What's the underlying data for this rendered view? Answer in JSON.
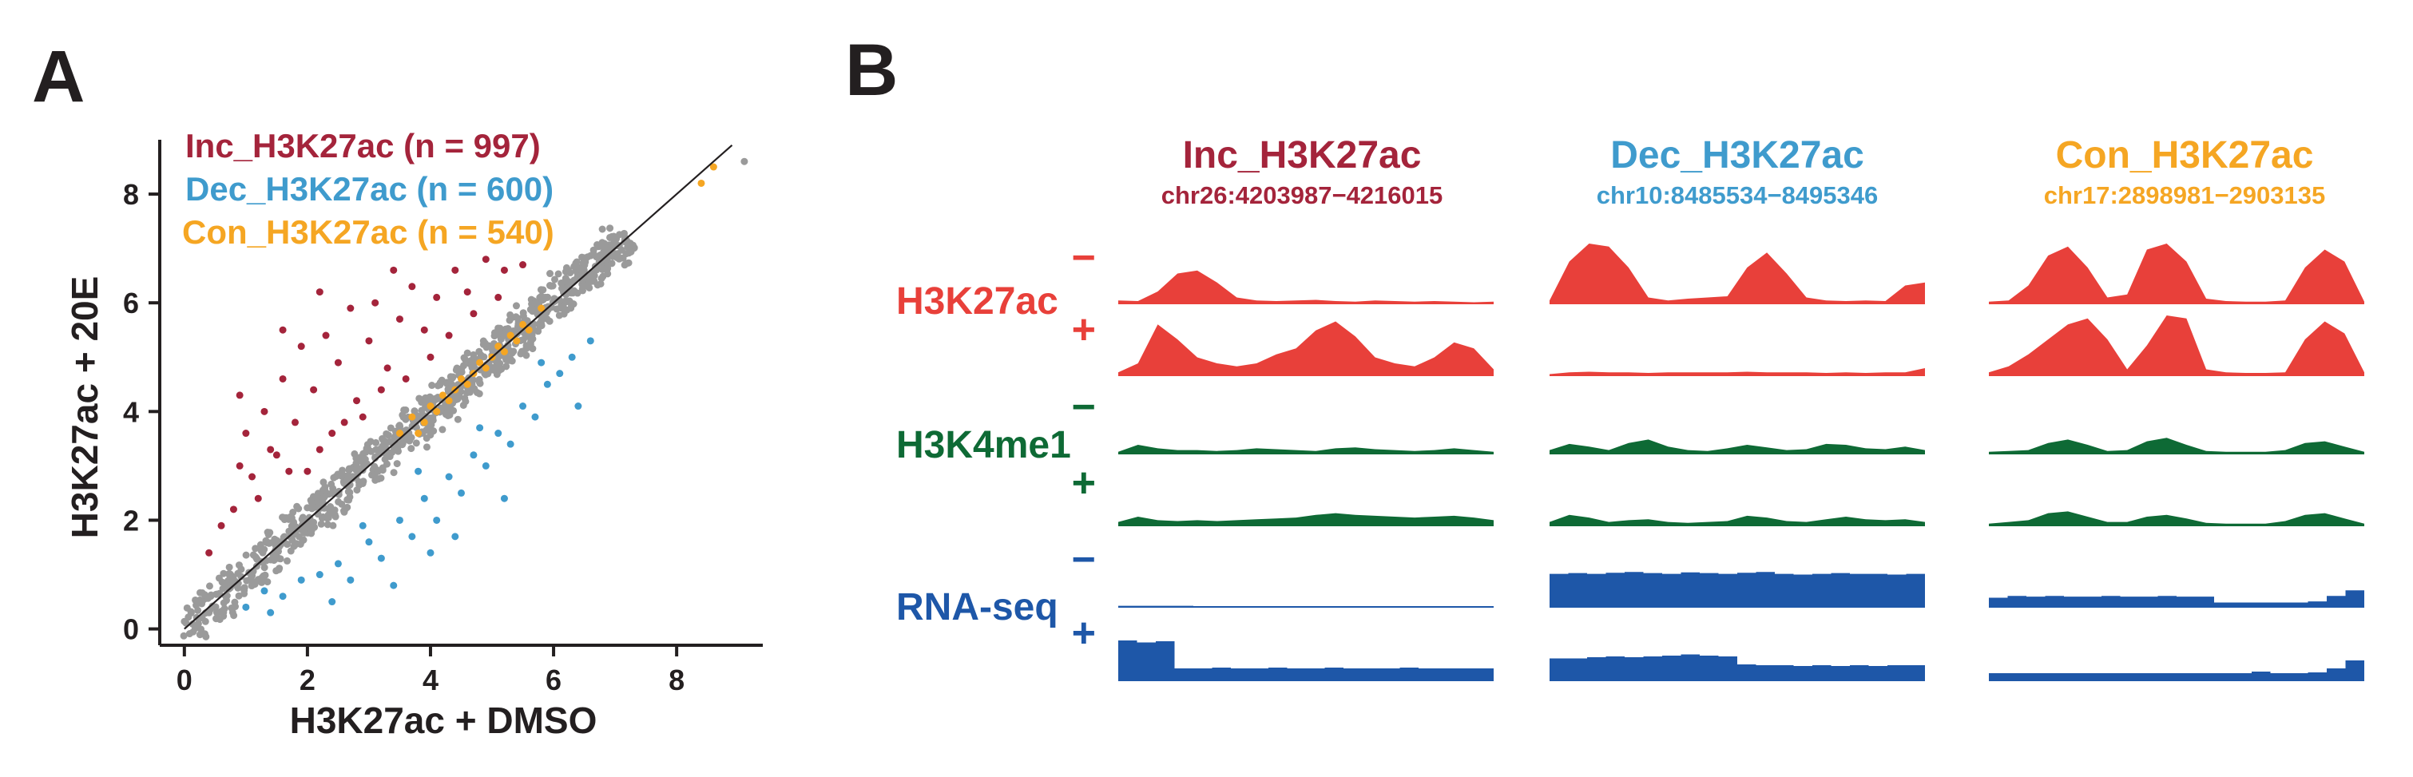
{
  "panels": {
    "a_label": "A",
    "b_label": "B"
  },
  "colors": {
    "inc": "#a4243b",
    "dec": "#3f9bcd",
    "con": "#f5a623",
    "background_points": "#9a9a9a",
    "h3k27ac": "#e8403a",
    "h3k4me1": "#0e6a35",
    "rnaseq": "#1e57a8",
    "axis": "#231f20"
  },
  "chart_data": [
    {
      "type": "scatter",
      "panel": "A",
      "xlabel": "H3K27ac + DMSO",
      "ylabel": "H3K27ac + 20E",
      "xlim": [
        -0.4,
        9.4
      ],
      "ylim": [
        -0.3,
        9.0
      ],
      "xticks": [
        0,
        2,
        4,
        6,
        8
      ],
      "yticks": [
        0,
        2,
        4,
        6,
        8
      ],
      "diagonal": "y = x",
      "legend_position": "top-left",
      "series": [
        {
          "name": "Inc_H3K27ac (n = 997)",
          "key": "inc",
          "n": 997,
          "points": [
            [
              0.4,
              1.4
            ],
            [
              0.8,
              2.2
            ],
            [
              0.9,
              3.0
            ],
            [
              1.0,
              3.6
            ],
            [
              1.2,
              2.4
            ],
            [
              1.3,
              4.0
            ],
            [
              1.5,
              3.2
            ],
            [
              1.6,
              4.6
            ],
            [
              1.8,
              3.8
            ],
            [
              1.9,
              5.2
            ],
            [
              2.0,
              2.9
            ],
            [
              2.1,
              4.4
            ],
            [
              2.3,
              5.4
            ],
            [
              2.4,
              3.6
            ],
            [
              2.5,
              4.9
            ],
            [
              2.7,
              5.9
            ],
            [
              2.8,
              4.2
            ],
            [
              3.0,
              5.3
            ],
            [
              3.1,
              6.0
            ],
            [
              3.3,
              4.8
            ],
            [
              3.5,
              5.7
            ],
            [
              3.7,
              6.3
            ],
            [
              3.9,
              5.5
            ],
            [
              4.1,
              6.1
            ],
            [
              4.4,
              6.6
            ],
            [
              4.6,
              6.2
            ],
            [
              4.9,
              6.8
            ],
            [
              5.2,
              6.6
            ],
            [
              0.6,
              1.9
            ],
            [
              1.1,
              2.8
            ],
            [
              1.4,
              3.3
            ],
            [
              1.7,
              2.9
            ],
            [
              2.2,
              3.3
            ],
            [
              2.6,
              3.8
            ],
            [
              2.9,
              3.9
            ],
            [
              3.2,
              4.4
            ],
            [
              3.6,
              4.6
            ],
            [
              4.0,
              5.0
            ],
            [
              4.3,
              5.4
            ],
            [
              4.7,
              5.8
            ],
            [
              5.1,
              6.1
            ],
            [
              5.5,
              6.7
            ],
            [
              1.6,
              5.5
            ],
            [
              2.2,
              6.2
            ],
            [
              0.9,
              4.3
            ],
            [
              3.4,
              6.6
            ]
          ]
        },
        {
          "name": "Dec_H3K27ac (n = 600)",
          "key": "dec",
          "n": 600,
          "points": [
            [
              1.0,
              0.4
            ],
            [
              1.3,
              0.7
            ],
            [
              1.6,
              0.6
            ],
            [
              1.9,
              0.9
            ],
            [
              2.2,
              1.0
            ],
            [
              2.5,
              1.2
            ],
            [
              2.7,
              0.9
            ],
            [
              3.0,
              1.6
            ],
            [
              3.2,
              1.3
            ],
            [
              3.5,
              2.0
            ],
            [
              3.7,
              1.7
            ],
            [
              3.9,
              2.4
            ],
            [
              4.1,
              2.0
            ],
            [
              4.3,
              2.8
            ],
            [
              4.5,
              2.5
            ],
            [
              4.7,
              3.2
            ],
            [
              4.9,
              3.0
            ],
            [
              5.1,
              3.6
            ],
            [
              5.3,
              3.4
            ],
            [
              5.5,
              4.1
            ],
            [
              5.7,
              3.9
            ],
            [
              5.9,
              4.5
            ],
            [
              6.1,
              4.7
            ],
            [
              6.3,
              5.0
            ],
            [
              1.4,
              0.3
            ],
            [
              2.4,
              0.5
            ],
            [
              3.4,
              0.8
            ],
            [
              4.4,
              1.7
            ],
            [
              5.2,
              2.4
            ],
            [
              6.4,
              4.1
            ],
            [
              2.9,
              1.9
            ],
            [
              3.8,
              2.9
            ],
            [
              4.8,
              3.7
            ],
            [
              5.8,
              4.9
            ],
            [
              6.6,
              5.3
            ],
            [
              4.0,
              1.4
            ]
          ]
        },
        {
          "name": "Con_H3K27ac (n = 540)",
          "key": "con",
          "n": 540,
          "points": [
            [
              3.5,
              3.6
            ],
            [
              3.7,
              3.9
            ],
            [
              3.9,
              3.8
            ],
            [
              4.0,
              4.1
            ],
            [
              4.2,
              4.3
            ],
            [
              4.3,
              4.2
            ],
            [
              4.5,
              4.6
            ],
            [
              4.6,
              4.5
            ],
            [
              4.8,
              4.9
            ],
            [
              4.9,
              4.8
            ],
            [
              5.1,
              5.2
            ],
            [
              5.2,
              5.1
            ],
            [
              5.3,
              5.4
            ],
            [
              5.5,
              5.6
            ],
            [
              5.6,
              5.5
            ],
            [
              5.8,
              5.9
            ],
            [
              3.8,
              3.6
            ],
            [
              4.1,
              4.0
            ],
            [
              4.4,
              4.4
            ],
            [
              4.7,
              4.7
            ],
            [
              5.0,
              5.0
            ],
            [
              5.4,
              5.3
            ],
            [
              8.4,
              8.2
            ],
            [
              8.6,
              8.5
            ]
          ]
        }
      ],
      "legend": [
        {
          "key": "inc",
          "label": "Inc_H3K27ac (n = 997)"
        },
        {
          "key": "dec",
          "label": "Dec_H3K27ac (n = 600)"
        },
        {
          "key": "con",
          "label": "Con_H3K27ac (n = 540)"
        }
      ]
    },
    {
      "type": "area",
      "panel": "B",
      "description_of_type": "genome browser tracks",
      "loci": [
        {
          "key": "inc",
          "title": "Inc_H3K27ac",
          "coords": "chr26:4203987−4216015"
        },
        {
          "key": "dec",
          "title": "Dec_H3K27ac",
          "coords": "chr10:8485534−8495346"
        },
        {
          "key": "con",
          "title": "Con_H3K27ac",
          "coords": "chr17:2898981−2903135"
        }
      ],
      "marks": [
        {
          "key": "h3k27ac",
          "label": "H3K27ac"
        },
        {
          "key": "h3k4me1",
          "label": "H3K4me1"
        },
        {
          "key": "rnaseq",
          "label": "RNA-seq"
        }
      ],
      "conditions": [
        {
          "key": "minus",
          "label": "−"
        },
        {
          "key": "plus",
          "label": "+"
        }
      ],
      "tracks": {
        "h3k27ac": {
          "minus": [
            [
              0.05,
              0.04,
              0.2,
              0.5,
              0.55,
              0.35,
              0.1,
              0.05,
              0.04,
              0.05,
              0.06,
              0.04,
              0.03,
              0.05,
              0.04,
              0.03,
              0.04,
              0.03,
              0.02,
              0.03
            ],
            [
              0.05,
              0.7,
              1.0,
              0.95,
              0.6,
              0.1,
              0.05,
              0.08,
              0.1,
              0.12,
              0.6,
              0.85,
              0.5,
              0.1,
              0.05,
              0.04,
              0.05,
              0.04,
              0.3,
              0.35
            ],
            [
              0.03,
              0.05,
              0.3,
              0.8,
              0.95,
              0.6,
              0.1,
              0.15,
              0.9,
              1.0,
              0.7,
              0.08,
              0.04,
              0.03,
              0.03,
              0.05,
              0.6,
              0.9,
              0.7,
              0.03
            ]
          ],
          "plus": [
            [
              0.05,
              0.2,
              0.85,
              0.6,
              0.3,
              0.2,
              0.15,
              0.2,
              0.35,
              0.45,
              0.75,
              0.9,
              0.65,
              0.3,
              0.2,
              0.15,
              0.3,
              0.55,
              0.45,
              0.1
            ],
            [
              0.02,
              0.05,
              0.06,
              0.05,
              0.05,
              0.04,
              0.05,
              0.05,
              0.05,
              0.05,
              0.06,
              0.05,
              0.05,
              0.05,
              0.04,
              0.05,
              0.04,
              0.05,
              0.05,
              0.12
            ],
            [
              0.05,
              0.15,
              0.35,
              0.6,
              0.85,
              0.95,
              0.6,
              0.1,
              0.5,
              1.0,
              0.95,
              0.1,
              0.05,
              0.04,
              0.04,
              0.05,
              0.6,
              0.9,
              0.7,
              0.05
            ]
          ]
        },
        "h3k4me1": {
          "minus": [
            [
              0.1,
              0.5,
              0.3,
              0.2,
              0.2,
              0.15,
              0.2,
              0.3,
              0.25,
              0.2,
              0.15,
              0.3,
              0.35,
              0.25,
              0.2,
              0.15,
              0.2,
              0.3,
              0.2,
              0.1
            ],
            [
              0.2,
              0.55,
              0.4,
              0.2,
              0.6,
              0.8,
              0.4,
              0.2,
              0.15,
              0.3,
              0.5,
              0.35,
              0.2,
              0.25,
              0.55,
              0.5,
              0.3,
              0.25,
              0.4,
              0.2
            ],
            [
              0.1,
              0.15,
              0.2,
              0.6,
              0.8,
              0.5,
              0.15,
              0.2,
              0.7,
              0.9,
              0.5,
              0.15,
              0.1,
              0.1,
              0.1,
              0.2,
              0.6,
              0.7,
              0.4,
              0.1
            ]
          ],
          "plus": [
            [
              0.2,
              0.5,
              0.3,
              0.25,
              0.3,
              0.25,
              0.3,
              0.35,
              0.4,
              0.45,
              0.6,
              0.7,
              0.6,
              0.55,
              0.5,
              0.45,
              0.5,
              0.55,
              0.45,
              0.3
            ],
            [
              0.2,
              0.6,
              0.45,
              0.2,
              0.3,
              0.35,
              0.2,
              0.15,
              0.2,
              0.25,
              0.55,
              0.45,
              0.25,
              0.2,
              0.35,
              0.5,
              0.35,
              0.3,
              0.35,
              0.2
            ],
            [
              0.1,
              0.2,
              0.3,
              0.7,
              0.8,
              0.5,
              0.2,
              0.2,
              0.5,
              0.6,
              0.4,
              0.15,
              0.1,
              0.1,
              0.1,
              0.25,
              0.6,
              0.7,
              0.4,
              0.1
            ]
          ]
        },
        "rnaseq": {
          "minus": [
            [
              0.03,
              0.03,
              0.03,
              0.03,
              0.02,
              0.02,
              0.02,
              0.02,
              0.02,
              0.02,
              0.02,
              0.02,
              0.02,
              0.02,
              0.02,
              0.02,
              0.02,
              0.02,
              0.02,
              0.02
            ],
            [
              0.9,
              0.92,
              0.9,
              0.93,
              0.95,
              0.92,
              0.9,
              0.94,
              0.92,
              0.9,
              0.93,
              0.95,
              0.9,
              0.88,
              0.9,
              0.92,
              0.9,
              0.9,
              0.88,
              0.9
            ],
            [
              0.25,
              0.3,
              0.28,
              0.3,
              0.28,
              0.28,
              0.3,
              0.28,
              0.28,
              0.3,
              0.28,
              0.28,
              0.12,
              0.12,
              0.12,
              0.12,
              0.12,
              0.15,
              0.3,
              0.45
            ]
          ],
          "plus": [
            [
              1.0,
              0.95,
              0.98,
              0.3,
              0.3,
              0.32,
              0.3,
              0.3,
              0.32,
              0.3,
              0.3,
              0.32,
              0.3,
              0.3,
              0.3,
              0.32,
              0.3,
              0.3,
              0.3,
              0.3
            ],
            [
              0.55,
              0.55,
              0.58,
              0.6,
              0.58,
              0.6,
              0.62,
              0.65,
              0.62,
              0.6,
              0.4,
              0.38,
              0.38,
              0.36,
              0.38,
              0.36,
              0.38,
              0.36,
              0.38,
              0.38
            ],
            [
              0.18,
              0.18,
              0.18,
              0.18,
              0.18,
              0.18,
              0.18,
              0.18,
              0.18,
              0.18,
              0.18,
              0.18,
              0.18,
              0.18,
              0.22,
              0.18,
              0.18,
              0.2,
              0.3,
              0.5
            ]
          ]
        }
      }
    }
  ]
}
